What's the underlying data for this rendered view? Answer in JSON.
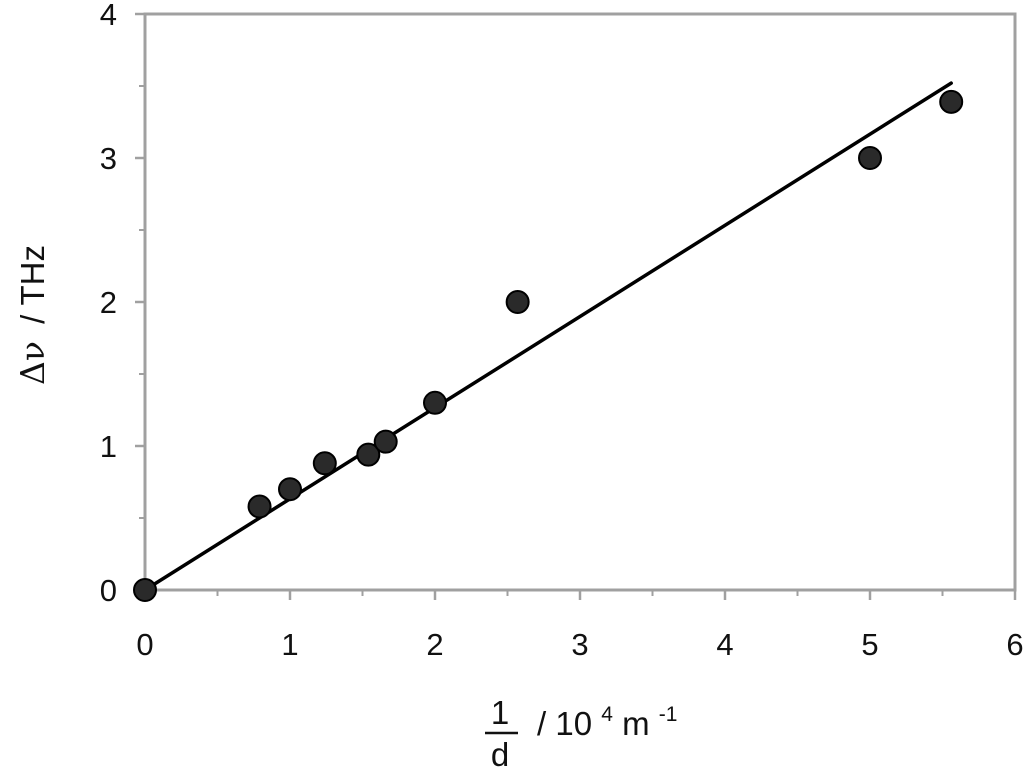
{
  "chart_data": {
    "type": "scatter",
    "xlabel": {
      "fraction_numerator": "1",
      "fraction_denominator": "d",
      "unit_text": "/ 10",
      "unit_exponent": "4",
      "unit_base": "m",
      "unit_base_exponent": "-1"
    },
    "ylabel": {
      "symbol": "Δν",
      "unit_text": "/ THz"
    },
    "xlim": [
      0,
      6
    ],
    "ylim": [
      0,
      4
    ],
    "x_ticks": [
      "0",
      "1",
      "2",
      "3",
      "4",
      "5",
      "6"
    ],
    "y_ticks": [
      "0",
      "1",
      "2",
      "3",
      "4"
    ],
    "x_minor_step": 0.5,
    "y_minor_step": 0.5,
    "grid": false,
    "series": [
      {
        "points": [
          [
            0.0,
            0.0
          ],
          [
            0.79,
            0.58
          ],
          [
            1.0,
            0.7
          ],
          [
            1.24,
            0.88
          ],
          [
            1.54,
            0.94
          ],
          [
            1.66,
            1.03
          ],
          [
            2.0,
            1.3
          ],
          [
            2.57,
            2.0
          ],
          [
            5.0,
            3.0
          ],
          [
            5.56,
            3.39
          ]
        ],
        "marker_color": "#2a2a2a"
      }
    ],
    "fit_line": {
      "x": [
        0.0,
        5.56
      ],
      "y": [
        0.0,
        3.52
      ],
      "color": "#000000"
    },
    "frame_color": "#a0a0a0"
  }
}
